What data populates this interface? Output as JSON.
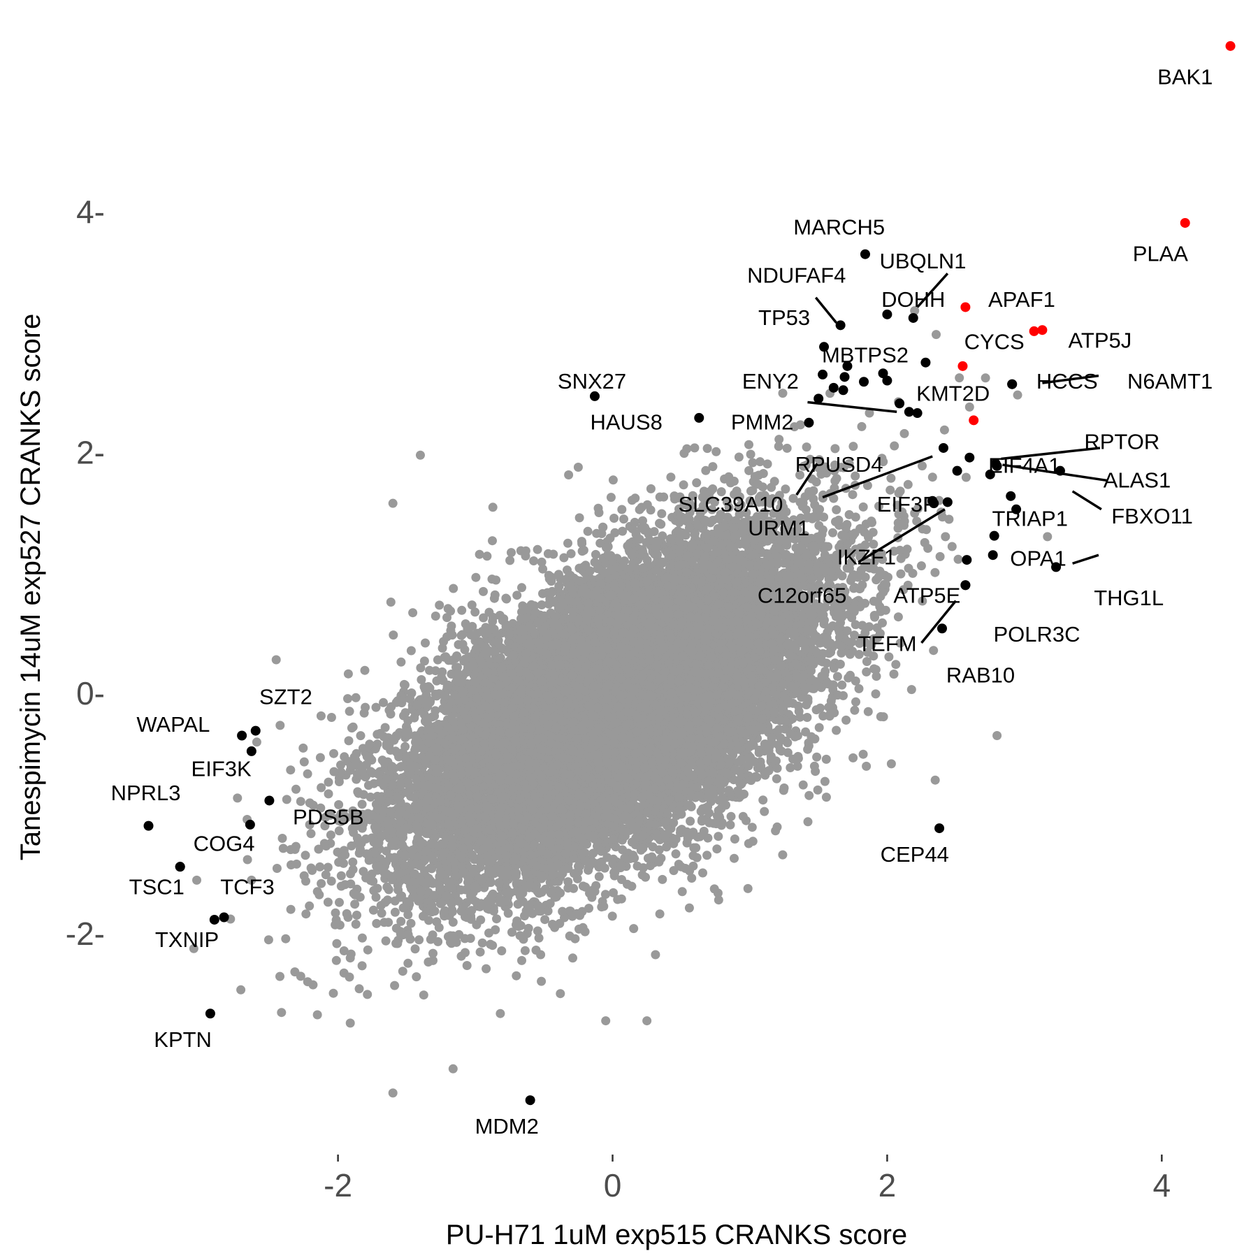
{
  "chart_data": {
    "type": "scatter",
    "xlabel": "PU-H71 1uM exp515 CRANKS score",
    "ylabel": "Tanespimycin 14uM exp527 CRANKS score",
    "xlim": [
      -3.8,
      4.65
    ],
    "ylim": [
      -3.8,
      5.55
    ],
    "xticks": [
      -2,
      0,
      2,
      4
    ],
    "yticks": [
      -2,
      0,
      2,
      4
    ],
    "xtick_labels": [
      "-2",
      "0",
      "2",
      "4"
    ],
    "ytick_labels": [
      "-2-",
      "0-",
      "2-",
      "4-"
    ],
    "grid": false,
    "background_cloud": {
      "color": "#999999",
      "count": 18000,
      "correlation": 0.6,
      "center": [
        0,
        -0.1
      ],
      "x_sd": 0.75,
      "y_sd": 0.7,
      "note_points": [
        [
          -1.6,
          -3.3
        ],
        [
          -0.05,
          -2.7
        ],
        [
          0.25,
          -2.7
        ],
        [
          -2.15,
          -2.65
        ],
        [
          -1.6,
          1.6
        ],
        [
          2.35,
          -0.7
        ],
        [
          2.8,
          -0.33
        ],
        [
          2.2,
          3.2
        ],
        [
          2.95,
          2.5
        ],
        [
          -3.05,
          -2.1
        ],
        [
          -2.45,
          0.3
        ],
        [
          -1.4,
          2.0
        ],
        [
          -0.25,
          1.9
        ],
        [
          2.6,
          2.4
        ]
      ]
    },
    "highlighted_red": {
      "color": "#ff0000",
      "points": [
        {
          "label": "BAK1",
          "x": 4.5,
          "y": 5.4
        },
        {
          "label": "PLAA",
          "x": 4.17,
          "y": 3.93
        },
        {
          "label": "APAF1",
          "x": 2.57,
          "y": 3.23
        },
        {
          "label": "CYCS",
          "x": 3.07,
          "y": 3.03
        },
        {
          "label": "ATP5J",
          "x": 3.13,
          "y": 3.04
        },
        {
          "label": "",
          "x": 2.55,
          "y": 2.74
        },
        {
          "label": "",
          "x": 2.63,
          "y": 2.29
        }
      ]
    },
    "highlighted_black": {
      "color": "#000000",
      "points": [
        {
          "label": "MARCH5",
          "x": 1.84,
          "y": 3.67
        },
        {
          "label": "UBQLN1",
          "x": 2.19,
          "y": 3.14
        },
        {
          "label": "DOHH",
          "x": 2.0,
          "y": 3.17
        },
        {
          "label": "NDUFAF4",
          "x": 1.66,
          "y": 3.08
        },
        {
          "label": "TP53",
          "x": 1.54,
          "y": 2.9
        },
        {
          "label": "MBTPS2",
          "x": 1.71,
          "y": 2.74
        },
        {
          "label": "ENY2",
          "x": 1.53,
          "y": 2.67
        },
        {
          "label": "",
          "x": 1.69,
          "y": 2.65
        },
        {
          "label": "",
          "x": 1.61,
          "y": 2.56
        },
        {
          "label": "",
          "x": 1.68,
          "y": 2.54
        },
        {
          "label": "",
          "x": 1.83,
          "y": 2.61
        },
        {
          "label": "",
          "x": 1.97,
          "y": 2.68
        },
        {
          "label": "",
          "x": 2.0,
          "y": 2.62
        },
        {
          "label": "",
          "x": 2.28,
          "y": 2.77
        },
        {
          "label": "PMM2",
          "x": 1.5,
          "y": 2.47
        },
        {
          "label": "KMT2D",
          "x": 2.09,
          "y": 2.43
        },
        {
          "label": "",
          "x": 2.16,
          "y": 2.36
        },
        {
          "label": "",
          "x": 2.22,
          "y": 2.35
        },
        {
          "label": "SNX27",
          "x": -0.13,
          "y": 2.49
        },
        {
          "label": "HAUS8",
          "x": 0.63,
          "y": 2.31
        },
        {
          "label": "SLC39A10",
          "x": 1.43,
          "y": 2.27
        },
        {
          "label": "HCCS",
          "x": 2.91,
          "y": 2.59
        },
        {
          "label": "N6AMT1",
          "x": 2.91,
          "y": 2.59
        },
        {
          "label": "RPUSD4",
          "x": 2.41,
          "y": 2.06
        },
        {
          "label": "EIF4A1",
          "x": 2.6,
          "y": 1.98
        },
        {
          "label": "RPTOR",
          "x": 2.79,
          "y": 1.93
        },
        {
          "label": "ALAS1",
          "x": 2.8,
          "y": 1.91
        },
        {
          "label": "EIF3F",
          "x": 2.51,
          "y": 1.87
        },
        {
          "label": "",
          "x": 2.75,
          "y": 1.84
        },
        {
          "label": "URM1",
          "x": 2.33,
          "y": 1.62
        },
        {
          "label": "TRIAP1",
          "x": 2.9,
          "y": 1.66
        },
        {
          "label": "FBXO11",
          "x": 3.26,
          "y": 1.87
        },
        {
          "label": "IKZF1",
          "x": 2.44,
          "y": 1.61
        },
        {
          "label": "",
          "x": 2.94,
          "y": 1.55
        },
        {
          "label": "C12orf65",
          "x": 2.34,
          "y": 1.6
        },
        {
          "label": "OPA1",
          "x": 2.78,
          "y": 1.33
        },
        {
          "label": "ATP5E",
          "x": 2.58,
          "y": 1.13
        },
        {
          "label": "",
          "x": 2.77,
          "y": 1.17
        },
        {
          "label": "THG1L",
          "x": 3.23,
          "y": 1.07
        },
        {
          "label": "POLR3C",
          "x": 2.57,
          "y": 0.92
        },
        {
          "label": "TEFM",
          "x": 2.57,
          "y": 0.92
        },
        {
          "label": "RAB10",
          "x": 2.4,
          "y": 0.56
        },
        {
          "label": "SZT2",
          "x": -2.6,
          "y": -0.29
        },
        {
          "label": "WAPAL",
          "x": -2.7,
          "y": -0.33
        },
        {
          "label": "",
          "x": -2.63,
          "y": -0.46
        },
        {
          "label": "EIF3K",
          "x": -2.5,
          "y": -0.87
        },
        {
          "label": "PDS5B",
          "x": -2.64,
          "y": -1.07
        },
        {
          "label": "NPRL3",
          "x": -3.38,
          "y": -1.08
        },
        {
          "label": "COG4",
          "x": -3.15,
          "y": -1.42
        },
        {
          "label": "TSC1",
          "x": -3.15,
          "y": -1.42
        },
        {
          "label": "TCF3",
          "x": -2.83,
          "y": -1.84
        },
        {
          "label": "TXNIP",
          "x": -2.9,
          "y": -1.86
        },
        {
          "label": "KPTN",
          "x": -2.93,
          "y": -2.64
        },
        {
          "label": "MDM2",
          "x": -0.6,
          "y": -3.36
        },
        {
          "label": "CEP44",
          "x": 2.38,
          "y": -1.1
        }
      ]
    },
    "labels": [
      {
        "text": "BAK1",
        "x": 4.17,
        "y": 5.13
      },
      {
        "text": "PLAA",
        "x": 3.99,
        "y": 3.66
      },
      {
        "text": "MARCH5",
        "x": 1.65,
        "y": 3.88
      },
      {
        "text": "UBQLN1",
        "x": 2.26,
        "y": 3.6
      },
      {
        "text": "NDUFAF4",
        "x": 1.34,
        "y": 3.48
      },
      {
        "text": "DOHH",
        "x": 2.19,
        "y": 3.28
      },
      {
        "text": "APAF1",
        "x": 2.98,
        "y": 3.28
      },
      {
        "text": "TP53",
        "x": 1.25,
        "y": 3.13
      },
      {
        "text": "CYCS",
        "x": 2.78,
        "y": 2.93
      },
      {
        "text": "ATP5J",
        "x": 3.55,
        "y": 2.94
      },
      {
        "text": "MBTPS2",
        "x": 1.84,
        "y": 2.82
      },
      {
        "text": "ENY2",
        "x": 1.15,
        "y": 2.6
      },
      {
        "text": "HCCS",
        "x": 3.31,
        "y": 2.6
      },
      {
        "text": "N6AMT1",
        "x": 4.06,
        "y": 2.6
      },
      {
        "text": "SNX27",
        "x": -0.15,
        "y": 2.6
      },
      {
        "text": "KMT2D",
        "x": 2.48,
        "y": 2.5
      },
      {
        "text": "PMM2",
        "x": 1.09,
        "y": 2.26
      },
      {
        "text": "HAUS8",
        "x": 0.1,
        "y": 2.26
      },
      {
        "text": "RPTOR",
        "x": 3.71,
        "y": 2.1
      },
      {
        "text": "EIF4A1",
        "x": 3.0,
        "y": 1.9
      },
      {
        "text": "RPUSD4",
        "x": 1.65,
        "y": 1.91
      },
      {
        "text": "ALAS1",
        "x": 3.82,
        "y": 1.78
      },
      {
        "text": "SLC39A10",
        "x": 0.86,
        "y": 1.58
      },
      {
        "text": "EIF3F",
        "x": 2.14,
        "y": 1.58
      },
      {
        "text": "TRIAP1",
        "x": 3.04,
        "y": 1.46
      },
      {
        "text": "FBXO11",
        "x": 3.93,
        "y": 1.48
      },
      {
        "text": "URM1",
        "x": 1.21,
        "y": 1.38
      },
      {
        "text": "IKZF1",
        "x": 1.85,
        "y": 1.14
      },
      {
        "text": "OPA1",
        "x": 3.1,
        "y": 1.13
      },
      {
        "text": "C12orf65",
        "x": 1.38,
        "y": 0.82
      },
      {
        "text": "ATP5E",
        "x": 2.29,
        "y": 0.82
      },
      {
        "text": "THG1L",
        "x": 3.76,
        "y": 0.8
      },
      {
        "text": "POLR3C",
        "x": 3.09,
        "y": 0.5
      },
      {
        "text": "TEFM",
        "x": 2.0,
        "y": 0.42
      },
      {
        "text": "RAB10",
        "x": 2.68,
        "y": 0.16
      },
      {
        "text": "SZT2",
        "x": -2.38,
        "y": -0.02
      },
      {
        "text": "WAPAL",
        "x": -3.2,
        "y": -0.25
      },
      {
        "text": "EIF3K",
        "x": -2.85,
        "y": -0.62
      },
      {
        "text": "NPRL3",
        "x": -3.4,
        "y": -0.82
      },
      {
        "text": "PDS5B",
        "x": -2.07,
        "y": -1.02
      },
      {
        "text": "COG4",
        "x": -2.83,
        "y": -1.24
      },
      {
        "text": "CEP44",
        "x": 2.2,
        "y": -1.33
      },
      {
        "text": "TSC1",
        "x": -3.32,
        "y": -1.6
      },
      {
        "text": "TCF3",
        "x": -2.66,
        "y": -1.6
      },
      {
        "text": "TXNIP",
        "x": -3.1,
        "y": -2.04
      },
      {
        "text": "KPTN",
        "x": -3.13,
        "y": -2.87
      },
      {
        "text": "MDM2",
        "x": -0.77,
        "y": -3.59
      }
    ],
    "leader_lines": [
      {
        "from": [
          1.48,
          3.31
        ],
        "to": [
          1.63,
          3.1
        ]
      },
      {
        "from": [
          2.44,
          3.51
        ],
        "to": [
          2.22,
          3.23
        ]
      },
      {
        "from": [
          3.13,
          2.6
        ],
        "to": [
          3.54,
          2.66
        ]
      },
      {
        "from": [
          1.42,
          2.44
        ],
        "to": [
          2.07,
          2.36
        ]
      },
      {
        "from": [
          3.55,
          2.06
        ],
        "to": [
          2.83,
          1.97
        ]
      },
      {
        "from": [
          3.6,
          1.79
        ],
        "to": [
          2.84,
          1.92
        ]
      },
      {
        "from": [
          1.49,
          1.93
        ],
        "to": [
          1.34,
          1.67
        ]
      },
      {
        "from": [
          1.53,
          1.65
        ],
        "to": [
          2.33,
          1.99
        ]
      },
      {
        "from": [
          3.56,
          1.55
        ],
        "to": [
          3.35,
          1.7
        ]
      },
      {
        "from": [
          1.79,
          1.11
        ],
        "to": [
          2.42,
          1.55
        ]
      },
      {
        "from": [
          3.54,
          1.17
        ],
        "to": [
          3.35,
          1.1
        ]
      },
      {
        "from": [
          2.25,
          0.44
        ],
        "to": [
          2.5,
          0.79
        ]
      }
    ]
  }
}
